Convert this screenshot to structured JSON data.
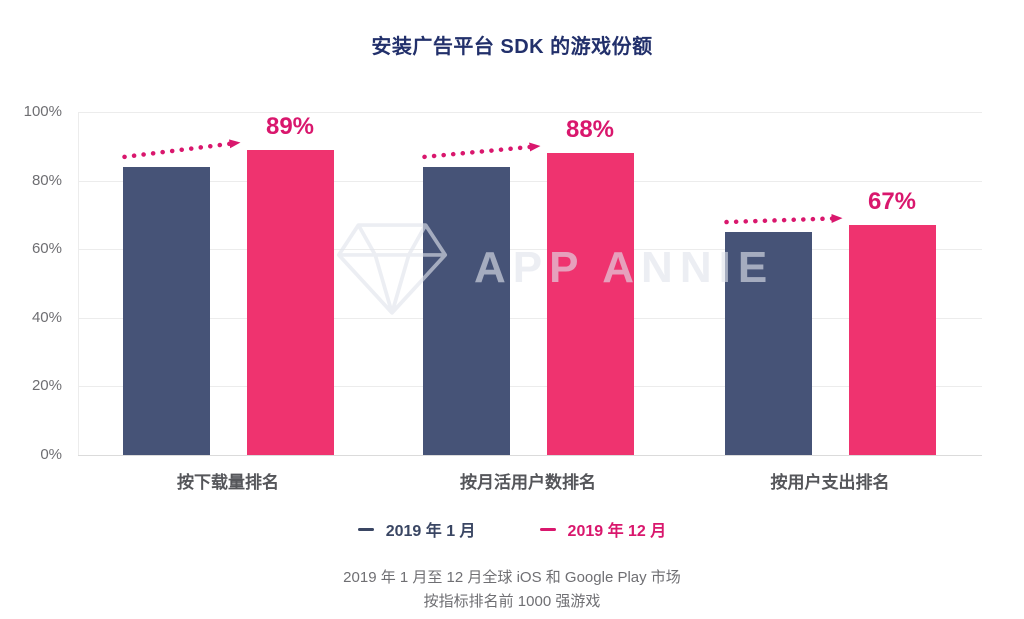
{
  "title": "安装广告平台 SDK 的游戏份额",
  "chart_data": {
    "type": "bar",
    "title": "安装广告平台 SDK 的游戏份额",
    "categories": [
      "按下载量排名",
      "按月活用户数排名",
      "按用户支出排名"
    ],
    "series": [
      {
        "name": "2019 年 1 月",
        "color": "#465377",
        "values": [
          84,
          84,
          65
        ]
      },
      {
        "name": "2019 年 12 月",
        "color": "#EF336F",
        "values": [
          89,
          88,
          67
        ],
        "value_labels": [
          "89%",
          "88%",
          "67%"
        ]
      }
    ],
    "yticks": [
      0,
      20,
      40,
      60,
      80,
      100
    ],
    "ytick_suffix": "%",
    "ylim": [
      0,
      100
    ],
    "grid": true,
    "legend_position": "bottom",
    "annotations": "dotted pink arrow from each Jan bar top to Dec bar top"
  },
  "legend": {
    "items": [
      {
        "label": "2019 年 1 月",
        "color": "#3A4663"
      },
      {
        "label": "2019 年 12 月",
        "color": "#D9176D"
      }
    ]
  },
  "footer": {
    "line1": "2019 年 1 月至 12 月全球 iOS 和 Google Play 市场",
    "line2": "按指标排名前 1000 强游戏"
  },
  "watermark": {
    "icon": "gem-icon",
    "text": "APP ANNIE"
  },
  "colors": {
    "title": "#22306B",
    "axis_label": "#6E6E72",
    "category_label": "#55565A",
    "gridline": "#ECECEC",
    "baseline": "#DBDBDB",
    "jan_bar": "#465377",
    "dec_bar": "#EF336F",
    "accent_pink": "#D9176D",
    "footer_text": "#6F6F73"
  }
}
